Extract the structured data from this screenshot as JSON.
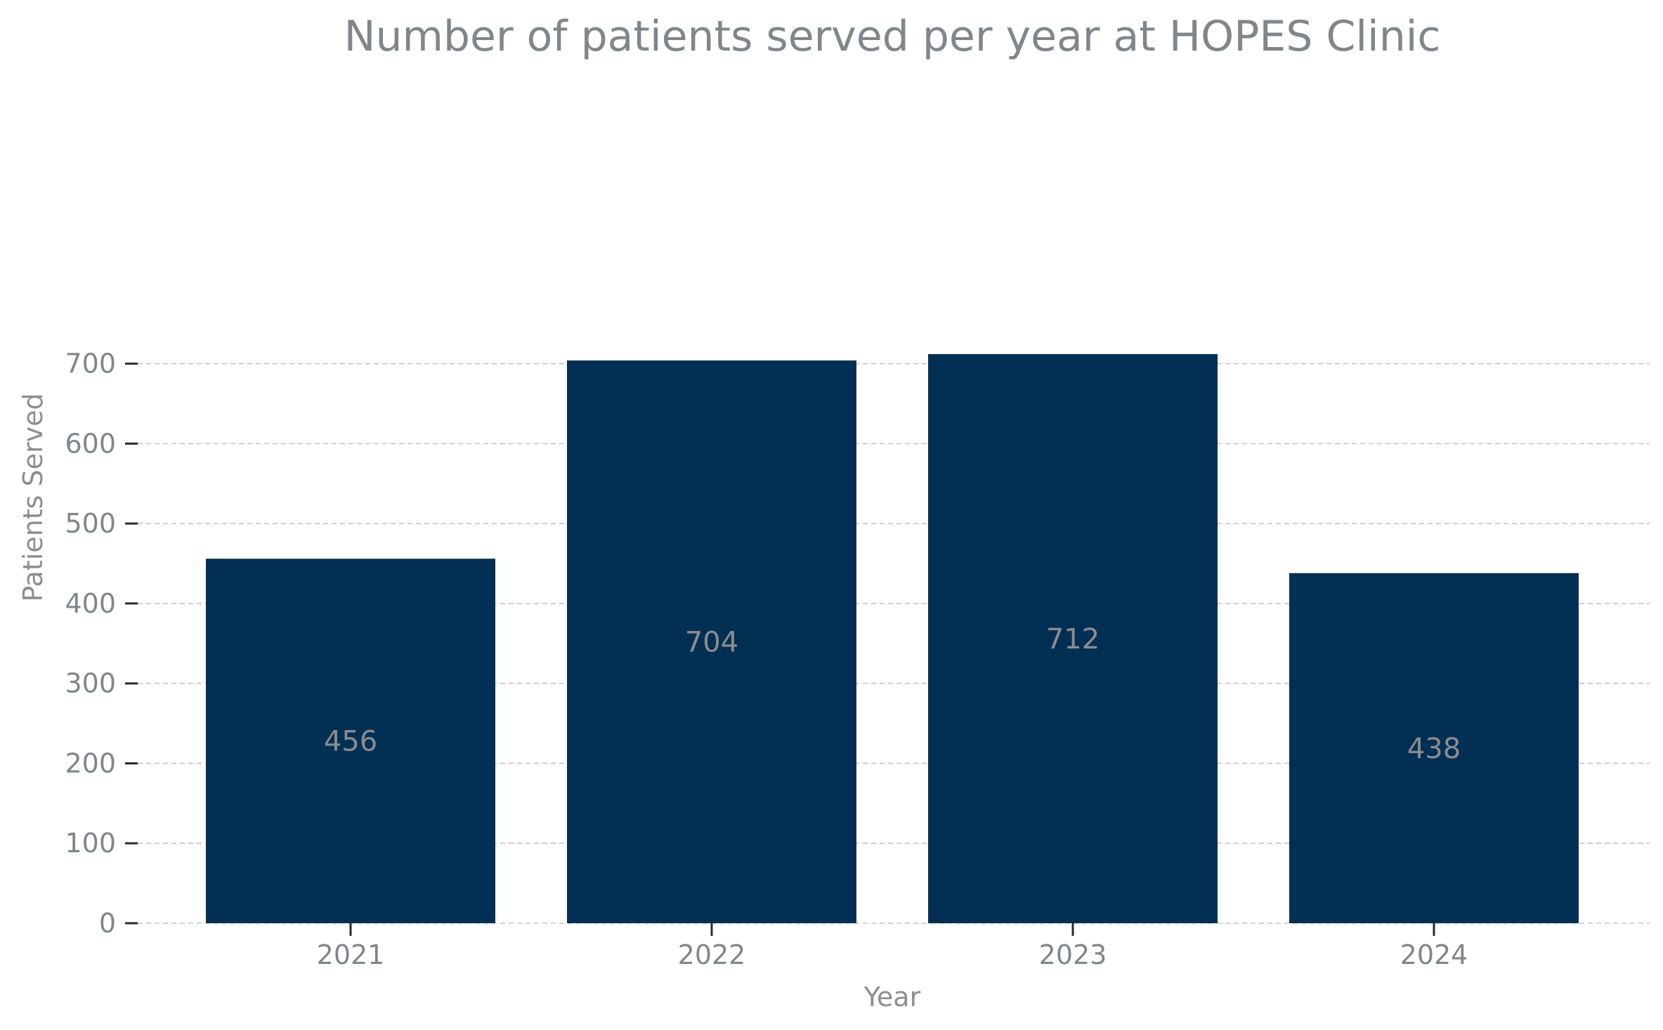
{
  "chart_data": {
    "type": "bar",
    "title": "Number of patients served per year at HOPES Clinic",
    "xlabel": "Year",
    "ylabel": "Patients Served",
    "categories": [
      "2021",
      "2022",
      "2023",
      "2024"
    ],
    "values": [
      456,
      704,
      712,
      438
    ],
    "value_labels": [
      "456",
      "704",
      "712",
      "438"
    ],
    "ylim": [
      0,
      720
    ],
    "yticks": [
      0,
      100,
      200,
      300,
      400,
      500,
      600,
      700
    ],
    "ytick_labels": [
      "0",
      "100",
      "200",
      "300",
      "400",
      "500",
      "600",
      "700"
    ],
    "grid": "horizontal dashed",
    "legend": "none",
    "colors": {
      "bar": "#023054",
      "grid": "#c3c3c3",
      "text": "#7f868c",
      "value_label": "#8c8c8c"
    }
  }
}
